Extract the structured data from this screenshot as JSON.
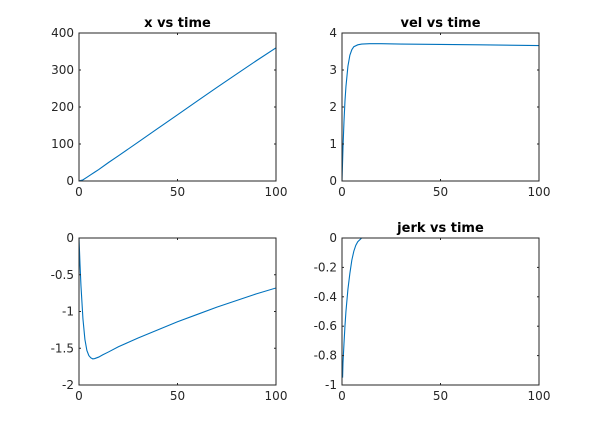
{
  "chart_data": [
    {
      "type": "line",
      "title": "x vs time",
      "xlabel": "",
      "ylabel": "",
      "xlim": [
        0,
        100
      ],
      "ylim": [
        0,
        400
      ],
      "xticks": [
        0,
        50,
        100
      ],
      "yticks": [
        0,
        100,
        200,
        300,
        400
      ],
      "xtick_labels": [
        "0",
        "50",
        "100"
      ],
      "ytick_labels": [
        "0",
        "100",
        "200",
        "300",
        "400"
      ],
      "grid": false,
      "color": "#0072bd",
      "series": [
        {
          "x": [
            0,
            2,
            4,
            6,
            8,
            10,
            15,
            20,
            30,
            40,
            50,
            60,
            70,
            80,
            90,
            100
          ],
          "y": [
            0,
            3,
            10,
            17,
            24,
            31,
            50,
            68,
            105,
            142,
            179,
            216,
            253,
            289,
            325,
            360
          ]
        }
      ]
    },
    {
      "type": "line",
      "title": "vel vs time",
      "xlabel": "",
      "ylabel": "",
      "xlim": [
        0,
        100
      ],
      "ylim": [
        0,
        4
      ],
      "xticks": [
        0,
        50,
        100
      ],
      "yticks": [
        0,
        1,
        2,
        3,
        4
      ],
      "xtick_labels": [
        "0",
        "50",
        "100"
      ],
      "ytick_labels": [
        "0",
        "1",
        "2",
        "3",
        "4"
      ],
      "grid": false,
      "color": "#0072bd",
      "series": [
        {
          "x": [
            0,
            0.5,
            1,
            1.5,
            2,
            3,
            4,
            5,
            6,
            8,
            10,
            14,
            20,
            30,
            50,
            70,
            100
          ],
          "y": [
            0,
            0.9,
            1.6,
            2.15,
            2.55,
            3.1,
            3.4,
            3.55,
            3.63,
            3.68,
            3.7,
            3.71,
            3.71,
            3.7,
            3.69,
            3.68,
            3.66
          ]
        }
      ]
    },
    {
      "type": "line",
      "title": "",
      "xlabel": "",
      "ylabel": "",
      "xlim": [
        0,
        100
      ],
      "ylim": [
        -2,
        0
      ],
      "xticks": [
        0,
        50,
        100
      ],
      "yticks": [
        -2,
        -1.5,
        -1,
        -0.5,
        0
      ],
      "xtick_labels": [
        "0",
        "50",
        "100"
      ],
      "ytick_labels": [
        "-2",
        "-1.5",
        "-1",
        "-0.5",
        "0"
      ],
      "grid": false,
      "color": "#0072bd",
      "series": [
        {
          "x": [
            0,
            0.5,
            1,
            2,
            3,
            4,
            5,
            6,
            7,
            8,
            10,
            12,
            15,
            20,
            25,
            30,
            40,
            50,
            60,
            70,
            80,
            90,
            100
          ],
          "y": [
            0,
            -0.35,
            -0.65,
            -1.1,
            -1.38,
            -1.53,
            -1.6,
            -1.63,
            -1.645,
            -1.64,
            -1.62,
            -1.59,
            -1.55,
            -1.48,
            -1.42,
            -1.36,
            -1.25,
            -1.14,
            -1.04,
            -0.94,
            -0.85,
            -0.76,
            -0.68
          ]
        }
      ]
    },
    {
      "type": "line",
      "title": "jerk vs time",
      "xlabel": "",
      "ylabel": "",
      "xlim": [
        0,
        100
      ],
      "ylim": [
        -1,
        0
      ],
      "xticks": [
        0,
        50,
        100
      ],
      "yticks": [
        -1,
        -0.8,
        -0.6,
        -0.4,
        -0.2,
        0
      ],
      "xtick_labels": [
        "0",
        "50",
        "100"
      ],
      "ytick_labels": [
        "-1",
        "-0.8",
        "-0.6",
        "-0.4",
        "-0.2",
        "0"
      ],
      "grid": false,
      "color": "#0072bd",
      "series": [
        {
          "x": [
            0.3,
            0.5,
            1,
            1.5,
            2,
            3,
            4,
            5,
            6,
            7,
            8,
            10,
            12,
            15,
            20,
            30,
            50,
            100
          ],
          "y": [
            -0.95,
            -0.85,
            -0.72,
            -0.6,
            -0.5,
            -0.35,
            -0.24,
            -0.15,
            -0.09,
            -0.05,
            -0.025,
            0,
            0.008,
            0.01,
            0.008,
            0.006,
            0.004,
            0.002
          ]
        }
      ]
    }
  ]
}
